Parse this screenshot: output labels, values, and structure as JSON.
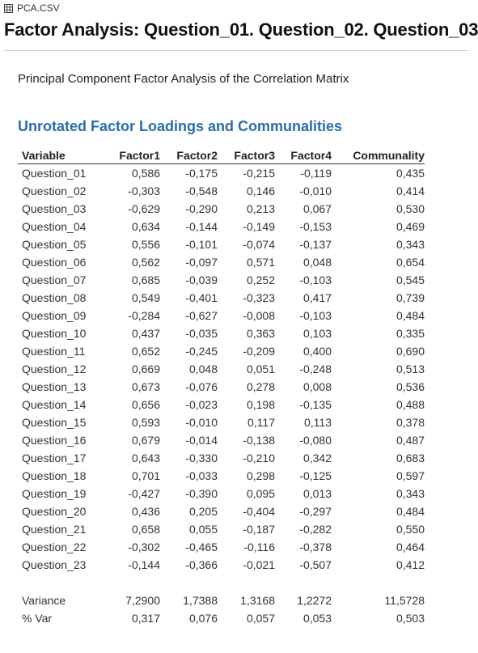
{
  "file_name": "PCA.CSV",
  "title": "Factor Analysis: Question_01. Question_02. Question_03",
  "subtitle": "Principal Component Factor Analysis of the Correlation Matrix",
  "section_title": "Unrotated Factor Loadings and Communalities",
  "columns": [
    "Variable",
    "Factor1",
    "Factor2",
    "Factor3",
    "Factor4",
    "Communality"
  ],
  "rows": [
    [
      "Question_01",
      "0,586",
      "-0,175",
      "-0,215",
      "-0,119",
      "0,435"
    ],
    [
      "Question_02",
      "-0,303",
      "-0,548",
      "0,146",
      "-0,010",
      "0,414"
    ],
    [
      "Question_03",
      "-0,629",
      "-0,290",
      "0,213",
      "0,067",
      "0,530"
    ],
    [
      "Question_04",
      "0,634",
      "-0,144",
      "-0,149",
      "-0,153",
      "0,469"
    ],
    [
      "Question_05",
      "0,556",
      "-0,101",
      "-0,074",
      "-0,137",
      "0,343"
    ],
    [
      "Question_06",
      "0,562",
      "-0,097",
      "0,571",
      "0,048",
      "0,654"
    ],
    [
      "Question_07",
      "0,685",
      "-0,039",
      "0,252",
      "-0,103",
      "0,545"
    ],
    [
      "Question_08",
      "0,549",
      "-0,401",
      "-0,323",
      "0,417",
      "0,739"
    ],
    [
      "Question_09",
      "-0,284",
      "-0,627",
      "-0,008",
      "-0,103",
      "0,484"
    ],
    [
      "Question_10",
      "0,437",
      "-0,035",
      "0,363",
      "0,103",
      "0,335"
    ],
    [
      "Question_11",
      "0,652",
      "-0,245",
      "-0,209",
      "0,400",
      "0,690"
    ],
    [
      "Question_12",
      "0,669",
      "0,048",
      "0,051",
      "-0,248",
      "0,513"
    ],
    [
      "Question_13",
      "0,673",
      "-0,076",
      "0,278",
      "0,008",
      "0,536"
    ],
    [
      "Question_14",
      "0,656",
      "-0,023",
      "0,198",
      "-0,135",
      "0,488"
    ],
    [
      "Question_15",
      "0,593",
      "-0,010",
      "0,117",
      "0,113",
      "0,378"
    ],
    [
      "Question_16",
      "0,679",
      "-0,014",
      "-0,138",
      "-0,080",
      "0,487"
    ],
    [
      "Question_17",
      "0,643",
      "-0,330",
      "-0,210",
      "0,342",
      "0,683"
    ],
    [
      "Question_18",
      "0,701",
      "-0,033",
      "0,298",
      "-0,125",
      "0,597"
    ],
    [
      "Question_19",
      "-0,427",
      "-0,390",
      "0,095",
      "0,013",
      "0,343"
    ],
    [
      "Question_20",
      "0,436",
      "0,205",
      "-0,404",
      "-0,297",
      "0,484"
    ],
    [
      "Question_21",
      "0,658",
      "0,055",
      "-0,187",
      "-0,282",
      "0,550"
    ],
    [
      "Question_22",
      "-0,302",
      "-0,465",
      "-0,116",
      "-0,378",
      "0,464"
    ],
    [
      "Question_23",
      "-0,144",
      "-0,366",
      "-0,021",
      "-0,507",
      "0,412"
    ]
  ],
  "summary_rows": [
    [
      "Variance",
      "7,2900",
      "1,7388",
      "1,3168",
      "1,2272",
      "11,5728"
    ],
    [
      "% Var",
      "0,317",
      "0,076",
      "0,057",
      "0,053",
      "0,503"
    ]
  ],
  "colors": {
    "section_title": "#2a6cad"
  }
}
